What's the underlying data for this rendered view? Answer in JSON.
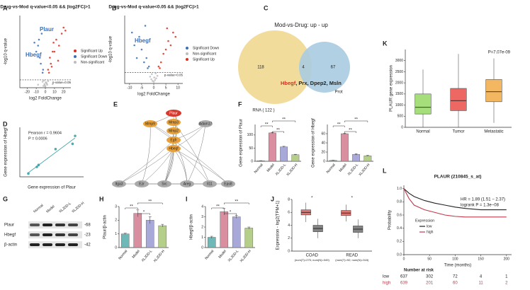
{
  "chart_data": [
    {
      "panel": "A",
      "type": "scatter",
      "title": "Drug-vs-Mod q-value<0.05 && |log2FC|>1",
      "xlabel": "log2 FoldChange",
      "ylabel": "-log10 q-value",
      "xlim": [
        -28,
        28
      ],
      "xticks": [
        -20,
        -10,
        0,
        10,
        20
      ],
      "ylim": [
        0,
        12
      ],
      "hline": 1.3,
      "hline_label": "p-value=0.05",
      "annotations": [
        "Plaur",
        "Hbegf"
      ],
      "legend": "right",
      "series": [
        {
          "name": "Significant Up",
          "color": "#d7301f",
          "x": [
            3,
            5,
            8,
            12,
            15,
            18,
            20,
            22,
            6,
            10,
            4,
            7,
            14,
            9
          ],
          "values": [
            3,
            5,
            6,
            8,
            7,
            9,
            10,
            9.5,
            4,
            6,
            2.5,
            3.5,
            4.5,
            7.5
          ]
        },
        {
          "name": "Significant Down",
          "color": "#3b6fb6",
          "x": [
            -3,
            -5,
            -4,
            -8,
            -10,
            -6,
            -2.5,
            -7,
            -12
          ],
          "values": [
            2.5,
            4,
            9,
            7,
            6,
            5,
            3,
            8,
            7.5
          ]
        },
        {
          "name": "Non-significant",
          "color": "#bdbdbd",
          "x": [
            -2,
            -1,
            0,
            1,
            2,
            -3,
            3,
            0.5,
            -0.5,
            -1.5,
            1.5,
            -8,
            8
          ],
          "values": [
            0.3,
            0.6,
            0.2,
            0.8,
            0.5,
            1,
            1.1,
            0.9,
            0.4,
            1.2,
            0.7,
            0.5,
            0.6
          ]
        }
      ]
    },
    {
      "panel": "B",
      "type": "scatter",
      "title": "Drug-vs-Mod q-value<0.05 && |log2FC|>1",
      "xlabel": "log2 FoldChange",
      "ylabel": "-log10 q-value",
      "xlim": [
        -12,
        12
      ],
      "xticks": [
        -10,
        -5,
        0,
        5,
        10
      ],
      "ylim": [
        0,
        8
      ],
      "hline": 1.3,
      "hline_label": "p-value=0.05",
      "annotations": [
        "Hbegf"
      ],
      "legend": "right",
      "series": [
        {
          "name": "Significant Down",
          "color": "#3b6fb6",
          "x": [
            -2,
            -3,
            -4,
            -5,
            -6,
            -7,
            -8,
            -9,
            -3.5,
            -2.5
          ],
          "values": [
            2,
            3,
            2.5,
            4,
            5.5,
            3,
            4.5,
            6,
            6.8,
            1.8
          ]
        },
        {
          "name": "Non-significant",
          "color": "#bdbdbd",
          "x": [
            -1.5,
            -1,
            -0.5,
            0,
            0.5,
            1,
            1.5,
            -0.8,
            0.8,
            0.2
          ],
          "values": [
            0.8,
            0.5,
            0.3,
            0.2,
            0.4,
            0.6,
            0.9,
            1.1,
            1.2,
            0.7
          ]
        },
        {
          "name": "Significant Up",
          "color": "#d7301f",
          "x": [
            2,
            3,
            4,
            5,
            6,
            7,
            8,
            9,
            5.5,
            2.5
          ],
          "values": [
            2,
            2.5,
            3.5,
            4,
            5,
            4.5,
            6,
            5.5,
            6.5,
            1.8
          ]
        }
      ]
    },
    {
      "panel": "K",
      "type": "box",
      "ylabel": "PLAUR gene expression",
      "annotations": [
        "P=7.07e-09"
      ],
      "categories": [
        "Normal",
        "Tumor",
        "Metastatic"
      ],
      "colors": [
        "#8fd65a",
        "#e8413c",
        "#f0a43a"
      ],
      "boxes": [
        {
          "min": 0,
          "q1": 600,
          "median": 900,
          "q3": 1500,
          "max": 2600
        },
        {
          "min": 0,
          "q1": 750,
          "median": 1200,
          "q3": 1750,
          "max": 3300
        },
        {
          "min": 200,
          "q1": 1150,
          "median": 1600,
          "q3": 2150,
          "max": 3100
        }
      ],
      "ylim": [
        0,
        3500
      ],
      "yticks": [
        0,
        500,
        1000,
        1500,
        2000,
        2500,
        3000
      ]
    },
    {
      "panel": "D",
      "type": "scatter",
      "xlabel": "Gene expression of Plaur",
      "ylabel": "Gene expression of Hbegf",
      "annotations": [
        "Pearson r = 0.9604",
        "P = 0.0006"
      ],
      "xlim": [
        0,
        75
      ],
      "ylim": [
        0,
        75
      ],
      "trendline": true,
      "series": [
        {
          "color": "#2e9e9e",
          "x": [
            10,
            20,
            22,
            42,
            62,
            65
          ],
          "values": [
            5,
            15,
            18,
            42,
            50,
            62
          ]
        }
      ]
    },
    {
      "panel": "F",
      "type": "bar",
      "ylabel": "Gene expression of Plaur",
      "categories": [
        "Normal",
        "Model",
        "XLJDD-L",
        "XLJDD-H"
      ],
      "values": [
        2,
        108,
        55,
        25
      ],
      "errors": [
        0.5,
        2,
        2,
        1.5
      ],
      "colors": [
        "#6fb8b8",
        "#d98fa0",
        "#a9a9d9",
        "#b5cf8a"
      ],
      "ylim": [
        0,
        140
      ],
      "yticks": [
        0,
        50,
        100
      ],
      "significance": [
        "**",
        "**",
        "**"
      ]
    },
    {
      "type": "bar",
      "ylabel": "Gene expression of Hbegf",
      "categories": [
        "Normal",
        "Model",
        "XLJDD-L",
        "XLJDD-H"
      ],
      "values": [
        2,
        60,
        15,
        12
      ],
      "errors": [
        0.3,
        1,
        1.5,
        1
      ],
      "colors": [
        "#6fb8b8",
        "#d98fa0",
        "#a9a9d9",
        "#b5cf8a"
      ],
      "ylim": [
        0,
        80
      ],
      "yticks": [
        0,
        20,
        40,
        60
      ],
      "significance": [
        "**",
        "**",
        "**"
      ]
    },
    {
      "panel": "H",
      "type": "bar",
      "ylabel": "Plaur/β-actin",
      "categories": [
        "Normal",
        "Model",
        "XLJDD-L",
        "XLJDD-H"
      ],
      "values": [
        1.0,
        2.5,
        2.0,
        1.6
      ],
      "errors": [
        0.05,
        0.25,
        0.25,
        0.1
      ],
      "colors": [
        "#6fb8b8",
        "#d98fa0",
        "#a9a9d9",
        "#b5cf8a"
      ],
      "ylim": [
        0,
        3
      ],
      "yticks": [
        0,
        1,
        2,
        3
      ],
      "significance": [
        "**",
        "*",
        "**"
      ]
    },
    {
      "panel": "I",
      "type": "bar",
      "ylabel": "Hbegf/β-actin",
      "categories": [
        "Normal",
        "Model",
        "XLJDD-L",
        "XLJDD-H"
      ],
      "values": [
        1.0,
        3.5,
        3.0,
        1.9
      ],
      "errors": [
        0.1,
        0.3,
        0.15,
        0.1
      ],
      "colors": [
        "#6fb8b8",
        "#d98fa0",
        "#a9a9d9",
        "#b5cf8a"
      ],
      "ylim": [
        0,
        4
      ],
      "yticks": [
        0,
        1,
        2,
        3,
        4
      ],
      "significance": [
        "**",
        "*",
        "**"
      ]
    },
    {
      "panel": "J",
      "type": "box",
      "ylabel": "Expression - log2(TPM+1)",
      "categories": [
        "COAD",
        "READ"
      ],
      "sublabels": [
        "(num(T)=275; num(N)=349)",
        "(num(T)=92; num(N)=318)"
      ],
      "significance": [
        "*",
        "*"
      ],
      "ylim": [
        0,
        8
      ],
      "yticks": [
        0,
        2,
        4,
        6,
        8
      ],
      "series": [
        {
          "name": "Tumor",
          "color": "#d9534f",
          "boxes": [
            {
              "min": 4.5,
              "q1": 5.6,
              "median": 6.0,
              "q3": 6.4,
              "max": 7.5
            },
            {
              "min": 4.6,
              "q1": 5.5,
              "median": 5.9,
              "q3": 6.3,
              "max": 7.2
            }
          ]
        },
        {
          "name": "Normal",
          "color": "#666666",
          "boxes": [
            {
              "min": 2.0,
              "q1": 3.0,
              "median": 3.5,
              "q3": 4.0,
              "max": 5.0
            },
            {
              "min": 2.0,
              "q1": 2.9,
              "median": 3.4,
              "q3": 3.9,
              "max": 4.9
            }
          ]
        }
      ]
    },
    {
      "panel": "L",
      "type": "line",
      "title": "PLAUR (210845_s_at)",
      "xlabel": "Time (months)",
      "ylabel": "Probability",
      "annotations": [
        "HR = 1.89 (1.51 − 2.37)",
        "logrank P = 1.3e−08"
      ],
      "legend_title": "Expression",
      "xlim": [
        0,
        210
      ],
      "xticks": [
        0,
        50,
        100,
        150,
        200
      ],
      "ylim": [
        0,
        1.05
      ],
      "yticks": [
        {
          "value": 0,
          "label": "0.0"
        },
        0.2,
        0.4,
        0.6,
        0.8,
        {
          "value": 1,
          "label": "1.0"
        }
      ],
      "x": [
        0,
        10,
        20,
        40,
        60,
        80,
        100,
        120,
        150,
        200
      ],
      "series": [
        {
          "name": "low",
          "color": "#222222",
          "values": [
            1,
            0.93,
            0.88,
            0.82,
            0.78,
            0.75,
            0.72,
            0.7,
            0.68,
            0.68
          ]
        },
        {
          "name": "high",
          "color": "#c0394b",
          "values": [
            1,
            0.85,
            0.75,
            0.68,
            0.64,
            0.6,
            0.58,
            0.57,
            0.57,
            0.57
          ]
        }
      ],
      "risk_table": {
        "title": "Number at risk",
        "rows": [
          {
            "name": "low",
            "values": [
              637,
              302,
              72,
              4,
              1
            ]
          },
          {
            "name": "high",
            "values": [
              639,
              201,
              60,
              11,
              2
            ]
          }
        ]
      }
    }
  ],
  "venn": {
    "panel": "C",
    "title": "Mod-vs-Drug: up - up",
    "left_count": 118,
    "overlap_count": 4,
    "right_count": 67,
    "left_label": "RNA ( 122 )",
    "right_label": "Prot",
    "genes": [
      "Hbegf",
      ", Prx, Dpep2, Msln"
    ]
  },
  "network": {
    "panel": "E",
    "nodes": [
      "Plaur",
      "Mmp9",
      "Mmp3",
      "Mmp2",
      "Adam17",
      "Egfr",
      "Hbegf",
      "Itga3",
      "Ezr",
      "Src",
      "Areg",
      "Il11",
      "Eps8"
    ]
  },
  "western_blot": {
    "panel": "G",
    "lanes": [
      "Normal",
      "Model",
      "XLJDD-L",
      "XLJDD-H"
    ],
    "rows": [
      {
        "name": "Plaur",
        "size": "-68"
      },
      {
        "name": "Hbegf",
        "size": "-23"
      },
      {
        "name": "β-actin",
        "size": "-42"
      }
    ]
  }
}
